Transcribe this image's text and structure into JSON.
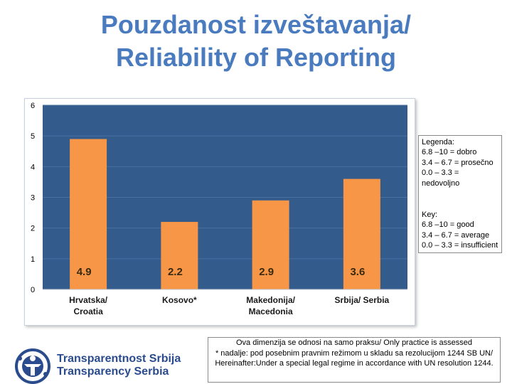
{
  "title_line1": "Pouzdanost izveštavanja/",
  "title_line2": "Reliability of Reporting",
  "legend": {
    "heading_sr": "Legenda:",
    "items_sr": [
      "6.8 –10 = dobro",
      "3.4 – 6.7 = prosečno",
      "0.0 – 3.3 = nedovoljno"
    ],
    "heading_en": "Key:",
    "items_en": [
      "6.8 –10 = good",
      "3.4 – 6.7 = average",
      "0.0 – 3.3 = insufficient"
    ]
  },
  "logo": {
    "line1": "Transparentnost Srbija",
    "line2": "Transparency Serbia"
  },
  "note": {
    "line1": "Ova dimenzija se odnosi na samo praksu/ Only practice is assessed",
    "line2": "* nadalje: pod posebnim pravnim režimom u skladu sa rezolucijom 1244 SB UN/ Hereinafter:Under a special legal regime in accordance with UN resolution 1244."
  },
  "colors": {
    "plot_background": "#335b8c",
    "bar": "#f79646",
    "title": "#4a7bbf",
    "logo": "#2a4b8d"
  },
  "chart_data": {
    "type": "bar",
    "categories": [
      "Hrvatska/ Croatia",
      "Kosovo*",
      "Makedonija/ Macedonia",
      "Srbija/ Serbia"
    ],
    "values": [
      4.9,
      2.2,
      2.9,
      3.6
    ],
    "value_labels": [
      "4.9",
      "2.2",
      "2.9",
      "3.6"
    ],
    "ylim": [
      0,
      6
    ],
    "yticks": [
      0,
      1,
      2,
      3,
      4,
      5,
      6
    ],
    "grid": true,
    "legend_placement": "right"
  }
}
